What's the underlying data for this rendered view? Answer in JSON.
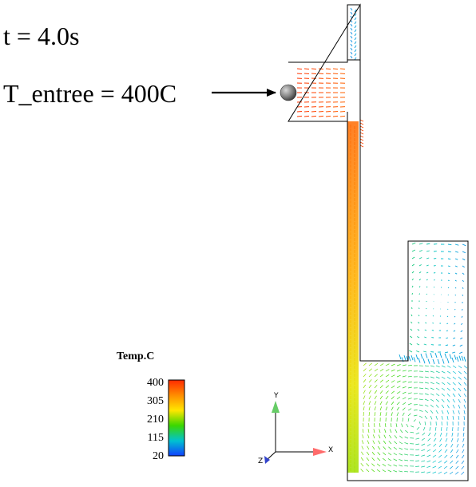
{
  "labels": {
    "time": "t = 4.0s",
    "inlet": "T_entree = 400C"
  },
  "legend": {
    "title": "Temp.C",
    "ticks": [
      "400",
      "305",
      "210",
      "115",
      "20"
    ],
    "min": 20,
    "max": 400,
    "colors": [
      "#ff2a00",
      "#ff8c00",
      "#ffe600",
      "#3ad700",
      "#00c2d0",
      "#1040ff"
    ]
  },
  "axes": {
    "y": "Y",
    "x": "X",
    "z": "Z"
  },
  "colors": {
    "outline": "#000000",
    "sphere": "#888888",
    "arrow": "#000000"
  }
}
